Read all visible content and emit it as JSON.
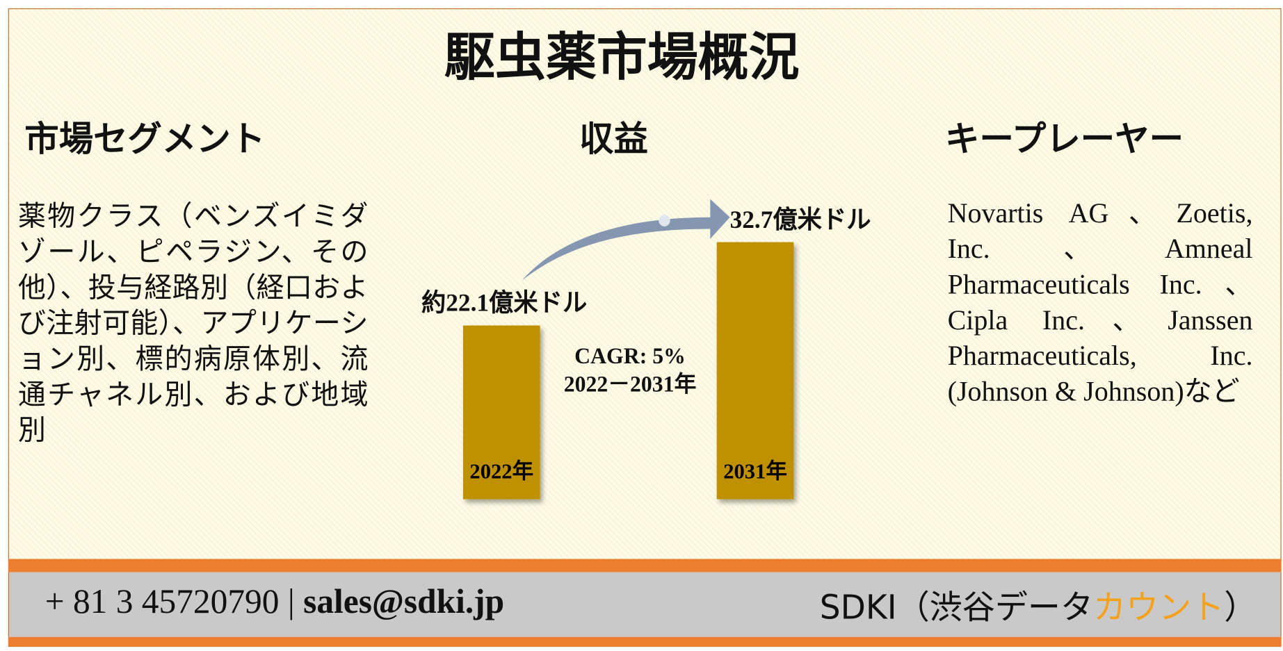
{
  "title": "駆虫薬市場概況",
  "segments": {
    "heading": "市場セグメント",
    "text": "薬物クラス（ベンズイミダゾール、ピペラジン、その他）、投与経路別（経口および注射可能）、アプリケーション別、標的病原体別、流通チャネル別、および地域別"
  },
  "players": {
    "heading": "キープレーヤー",
    "text": "Novartis AG、Zoetis, Inc.、Amneal Pharmaceuticals Inc.、Cipla Inc.、Janssen Pharmaceuticals, Inc. (Johnson & Johnson)など"
  },
  "chart_data": {
    "type": "bar",
    "title": "収益",
    "categories": [
      "2022年",
      "2031年"
    ],
    "values": [
      22.1,
      32.7
    ],
    "value_labels": [
      "約22.1億米ドル",
      "32.7億米ドル"
    ],
    "color": "#bf9000",
    "annotations": [
      "CAGR: 5%",
      "2022－2031年"
    ]
  },
  "footer": {
    "phone": "+ 81 3 45720790",
    "separator": "|",
    "email": "sales@sdki.jp",
    "brand": "SDKI（渋谷データ",
    "brand_highlight": "カウント",
    "brand_close": "）"
  }
}
